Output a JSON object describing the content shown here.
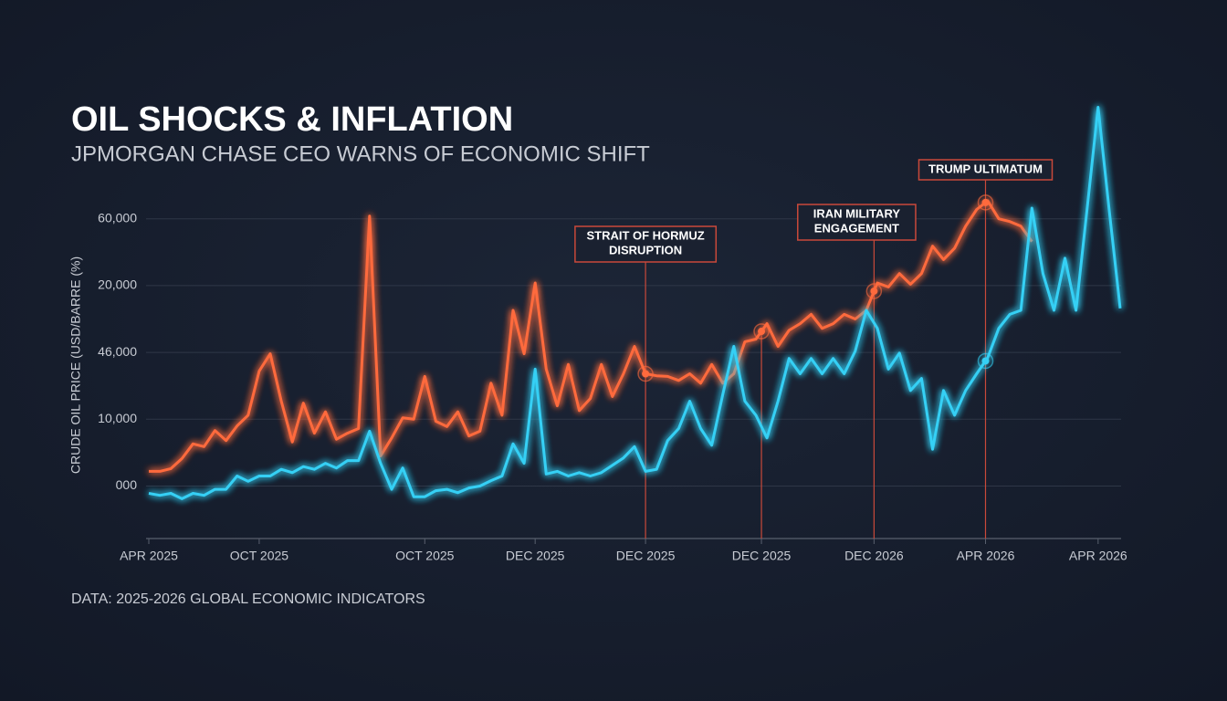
{
  "chart_data": {
    "type": "line",
    "title": "OIL SHOCKS & INFLATION",
    "subtitle": "JPMORGAN CHASE CEO WARNS OF ECONOMIC SHIFT",
    "y_label": "CRUDE OIL PRICE (USD/BARRE (%)",
    "source": "DATA: 2025-2026 GLOBAL ECONOMIC INDICATORS",
    "grid": true,
    "xlim": [
      0,
      88
    ],
    "ylim": [
      -0.8,
      5.8
    ],
    "yticks": [
      {
        "value": 0,
        "label": "000"
      },
      {
        "value": 1,
        "label": "10,000"
      },
      {
        "value": 2,
        "label": "46,000"
      },
      {
        "value": 3,
        "label": "20,000"
      },
      {
        "value": 4,
        "label": "60,000"
      }
    ],
    "xticks": [
      {
        "value": 0,
        "label": "APR 2025"
      },
      {
        "value": 10,
        "label": "OCT 2025"
      },
      {
        "value": 25,
        "label": "OCT 2025"
      },
      {
        "value": 35,
        "label": "DEC 2025"
      },
      {
        "value": 45,
        "label": "DEC 2025"
      },
      {
        "value": 55.5,
        "label": "DEC 2025"
      },
      {
        "value": 65.7,
        "label": "DEC 2026"
      },
      {
        "value": 75.8,
        "label": "APR 2026"
      },
      {
        "value": 86,
        "label": "APR 2026"
      }
    ],
    "x": [
      0,
      1,
      2,
      3,
      4,
      5,
      6,
      7,
      8,
      9,
      10,
      11,
      12,
      13,
      14,
      15,
      16,
      17,
      18,
      19,
      20,
      21,
      22,
      23,
      24,
      25,
      26,
      27,
      28,
      29,
      30,
      31,
      32,
      33,
      34,
      35,
      36,
      37,
      38,
      39,
      40,
      41,
      42,
      43,
      44,
      45,
      46,
      47,
      48,
      49,
      50,
      51,
      52,
      53,
      54,
      55,
      56,
      57,
      58,
      59,
      60,
      61,
      62,
      63,
      64,
      65,
      66,
      67,
      68,
      69,
      70,
      71,
      72,
      73,
      74,
      75,
      76,
      77,
      78,
      79,
      80,
      81,
      82,
      83,
      84,
      85,
      86,
      87,
      88
    ],
    "series": [
      {
        "color": "#ff6a3d",
        "values": [
          0.22,
          0.22,
          0.26,
          0.41,
          0.63,
          0.59,
          0.83,
          0.68,
          0.9,
          1.06,
          1.72,
          1.98,
          1.27,
          0.66,
          1.24,
          0.79,
          1.11,
          0.7,
          0.79,
          0.86,
          4.04,
          0.45,
          0.72,
          1.02,
          1.0,
          1.64,
          0.97,
          0.89,
          1.11,
          0.75,
          0.82,
          1.54,
          1.06,
          2.63,
          1.98,
          3.04,
          1.75,
          1.2,
          1.82,
          1.13,
          1.31,
          1.82,
          1.34,
          1.68,
          2.09,
          1.68,
          1.65,
          1.64,
          1.58,
          1.68,
          1.54,
          1.82,
          1.54,
          1.68,
          2.16,
          2.2,
          2.43,
          2.09,
          2.33,
          2.43,
          2.57,
          2.36,
          2.43,
          2.57,
          2.5,
          2.63,
          3.04,
          2.98,
          3.18,
          3.02,
          3.18,
          3.59,
          3.39,
          3.56,
          3.89,
          4.14,
          4.27,
          4.0,
          3.96,
          3.89,
          3.66,
          null,
          null,
          null,
          null,
          null,
          null,
          null,
          null
        ]
      },
      {
        "color": "#35d0f5",
        "values": [
          -0.11,
          -0.14,
          -0.11,
          -0.19,
          -0.11,
          -0.14,
          -0.05,
          -0.05,
          0.15,
          0.07,
          0.15,
          0.15,
          0.25,
          0.2,
          0.29,
          0.25,
          0.34,
          0.27,
          0.38,
          0.38,
          0.82,
          0.34,
          -0.05,
          0.27,
          -0.16,
          -0.16,
          -0.07,
          -0.05,
          -0.1,
          -0.03,
          0,
          0.08,
          0.15,
          0.63,
          0.34,
          1.75,
          0.18,
          0.22,
          0.15,
          0.2,
          0.15,
          0.2,
          0.31,
          0.42,
          0.59,
          0.22,
          0.25,
          0.68,
          0.86,
          1.27,
          0.86,
          0.61,
          1.37,
          2.09,
          1.27,
          1.06,
          0.72,
          1.27,
          1.91,
          1.68,
          1.91,
          1.68,
          1.91,
          1.68,
          2.02,
          2.63,
          2.36,
          1.75,
          1.99,
          1.43,
          1.61,
          0.55,
          1.43,
          1.06,
          1.43,
          1.68,
          1.92,
          2.36,
          2.57,
          2.63,
          4.16,
          3.18,
          2.63,
          3.41,
          2.63,
          4.14,
          5.67,
          4.14,
          2.66
        ]
      }
    ],
    "annotations": [
      {
        "x": 45,
        "text": [
          "STRAIT OF HORMUZ",
          "DISRUPTION"
        ]
      },
      {
        "x": 55.5
      },
      {
        "x": 65.7,
        "text": [
          "IRAN MILITARY",
          "ENGAGEMENT"
        ]
      },
      {
        "x": 75.8,
        "text": [
          "TRUMP ULTIMATUM"
        ]
      }
    ]
  }
}
